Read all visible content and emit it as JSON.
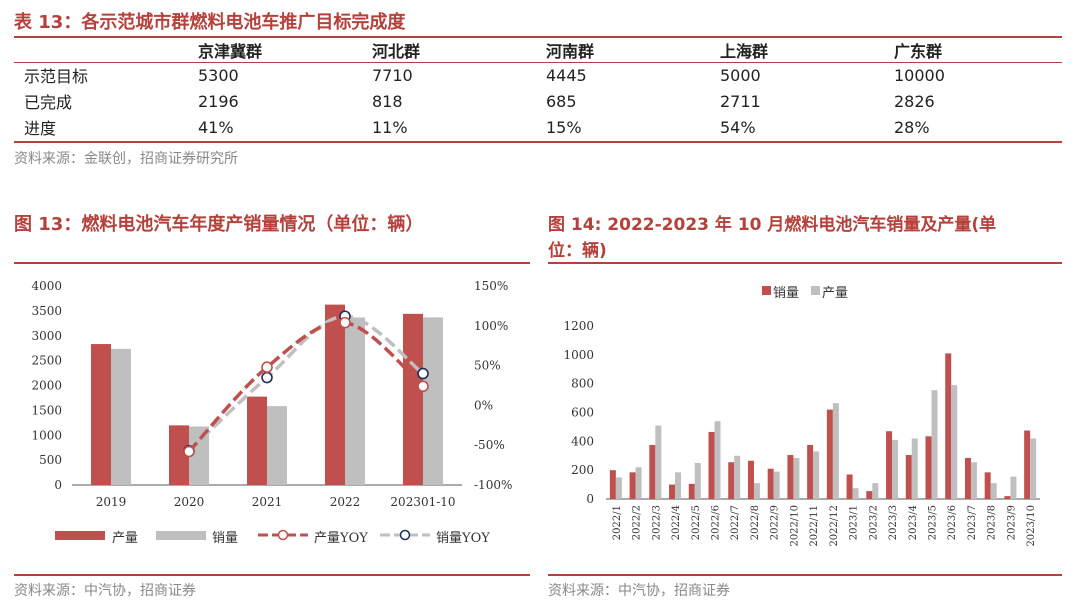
{
  "table13": {
    "title": "表 13：各示范城市群燃料电池车推广目标完成度",
    "columns": [
      "京津冀群",
      "河北群",
      "河南群",
      "上海群",
      "广东群"
    ],
    "rows": [
      {
        "label": "示范目标",
        "values": [
          "5300",
          "7710",
          "4445",
          "5000",
          "10000"
        ]
      },
      {
        "label": "已完成",
        "values": [
          "2196",
          "818",
          "685",
          "2711",
          "2826"
        ]
      },
      {
        "label": "进度",
        "values": [
          "41%",
          "11%",
          "15%",
          "54%",
          "28%"
        ]
      }
    ],
    "source": "资料来源：金联创，招商证券研究所"
  },
  "figure13": {
    "title": "图 13：燃料电池汽车年度产销量情况（单位：辆）",
    "source": "资料来源：中汽协，招商证券",
    "legend": {
      "production": "产量",
      "sales": "销量",
      "production_yoy": "产量YOY",
      "sales_yoy": "销量YOY"
    }
  },
  "figure14": {
    "title_line1": "图 14: 2022-2023 年 10 月燃料电池汽车销量及产量(单",
    "title_line2": "位：辆)",
    "source": "资料来源：中汽协，招商证券",
    "legend": {
      "sales": "销量",
      "production": "产量"
    }
  },
  "colors": {
    "accent": "#b4413c",
    "production": "#c0504d",
    "sales": "#bfbfbf"
  },
  "chart_data": [
    {
      "type": "bar",
      "title": "燃料电池汽车年度产销量情况（单位：辆）",
      "categories": [
        "2019",
        "2020",
        "2021",
        "2022",
        "202301-10"
      ],
      "series": [
        {
          "name": "产量",
          "values": [
            2833,
            1199,
            1777,
            3626,
            3440
          ]
        },
        {
          "name": "销量",
          "values": [
            2737,
            1177,
            1586,
            3367,
            3370
          ]
        },
        {
          "name": "产量YOY",
          "axis": "right",
          "values": [
            null,
            -58,
            48,
            104,
            24
          ]
        },
        {
          "name": "销量YOY",
          "axis": "right",
          "values": [
            null,
            -57,
            35,
            112,
            40
          ]
        }
      ],
      "ylim": [
        0,
        4000
      ],
      "yticks": [
        "0",
        "500",
        "1000",
        "1500",
        "2000",
        "2500",
        "3000",
        "3500",
        "4000"
      ],
      "y2lim": [
        -100,
        150
      ],
      "y2ticks": [
        "-100%",
        "-50%",
        "0%",
        "50%",
        "100%",
        "150%"
      ]
    },
    {
      "type": "bar",
      "title": "2022-2023 年 10 月燃料电池汽车销量及产量(单位：辆)",
      "categories": [
        "2022/1",
        "2022/2",
        "2022/3",
        "2022/4",
        "2022/5",
        "2022/6",
        "2022/7",
        "2022/8",
        "2022/9",
        "2022/10",
        "2022/11",
        "2022/12",
        "2023/1",
        "2023/2",
        "2023/3",
        "2023/4",
        "2023/5",
        "2023/6",
        "2023/7",
        "2023/8",
        "2023/9",
        "2023/10"
      ],
      "series": [
        {
          "name": "销量",
          "values": [
            200,
            185,
            375,
            100,
            105,
            465,
            255,
            265,
            210,
            305,
            375,
            620,
            170,
            55,
            470,
            305,
            435,
            1010,
            285,
            185,
            20,
            475
          ]
        },
        {
          "name": "产量",
          "values": [
            150,
            220,
            510,
            185,
            250,
            540,
            300,
            110,
            190,
            285,
            330,
            665,
            75,
            110,
            410,
            420,
            755,
            790,
            255,
            110,
            155,
            420
          ]
        }
      ],
      "ylim": [
        0,
        1200
      ],
      "yticks": [
        "0",
        "200",
        "400",
        "600",
        "800",
        "1000",
        "1200"
      ]
    }
  ]
}
